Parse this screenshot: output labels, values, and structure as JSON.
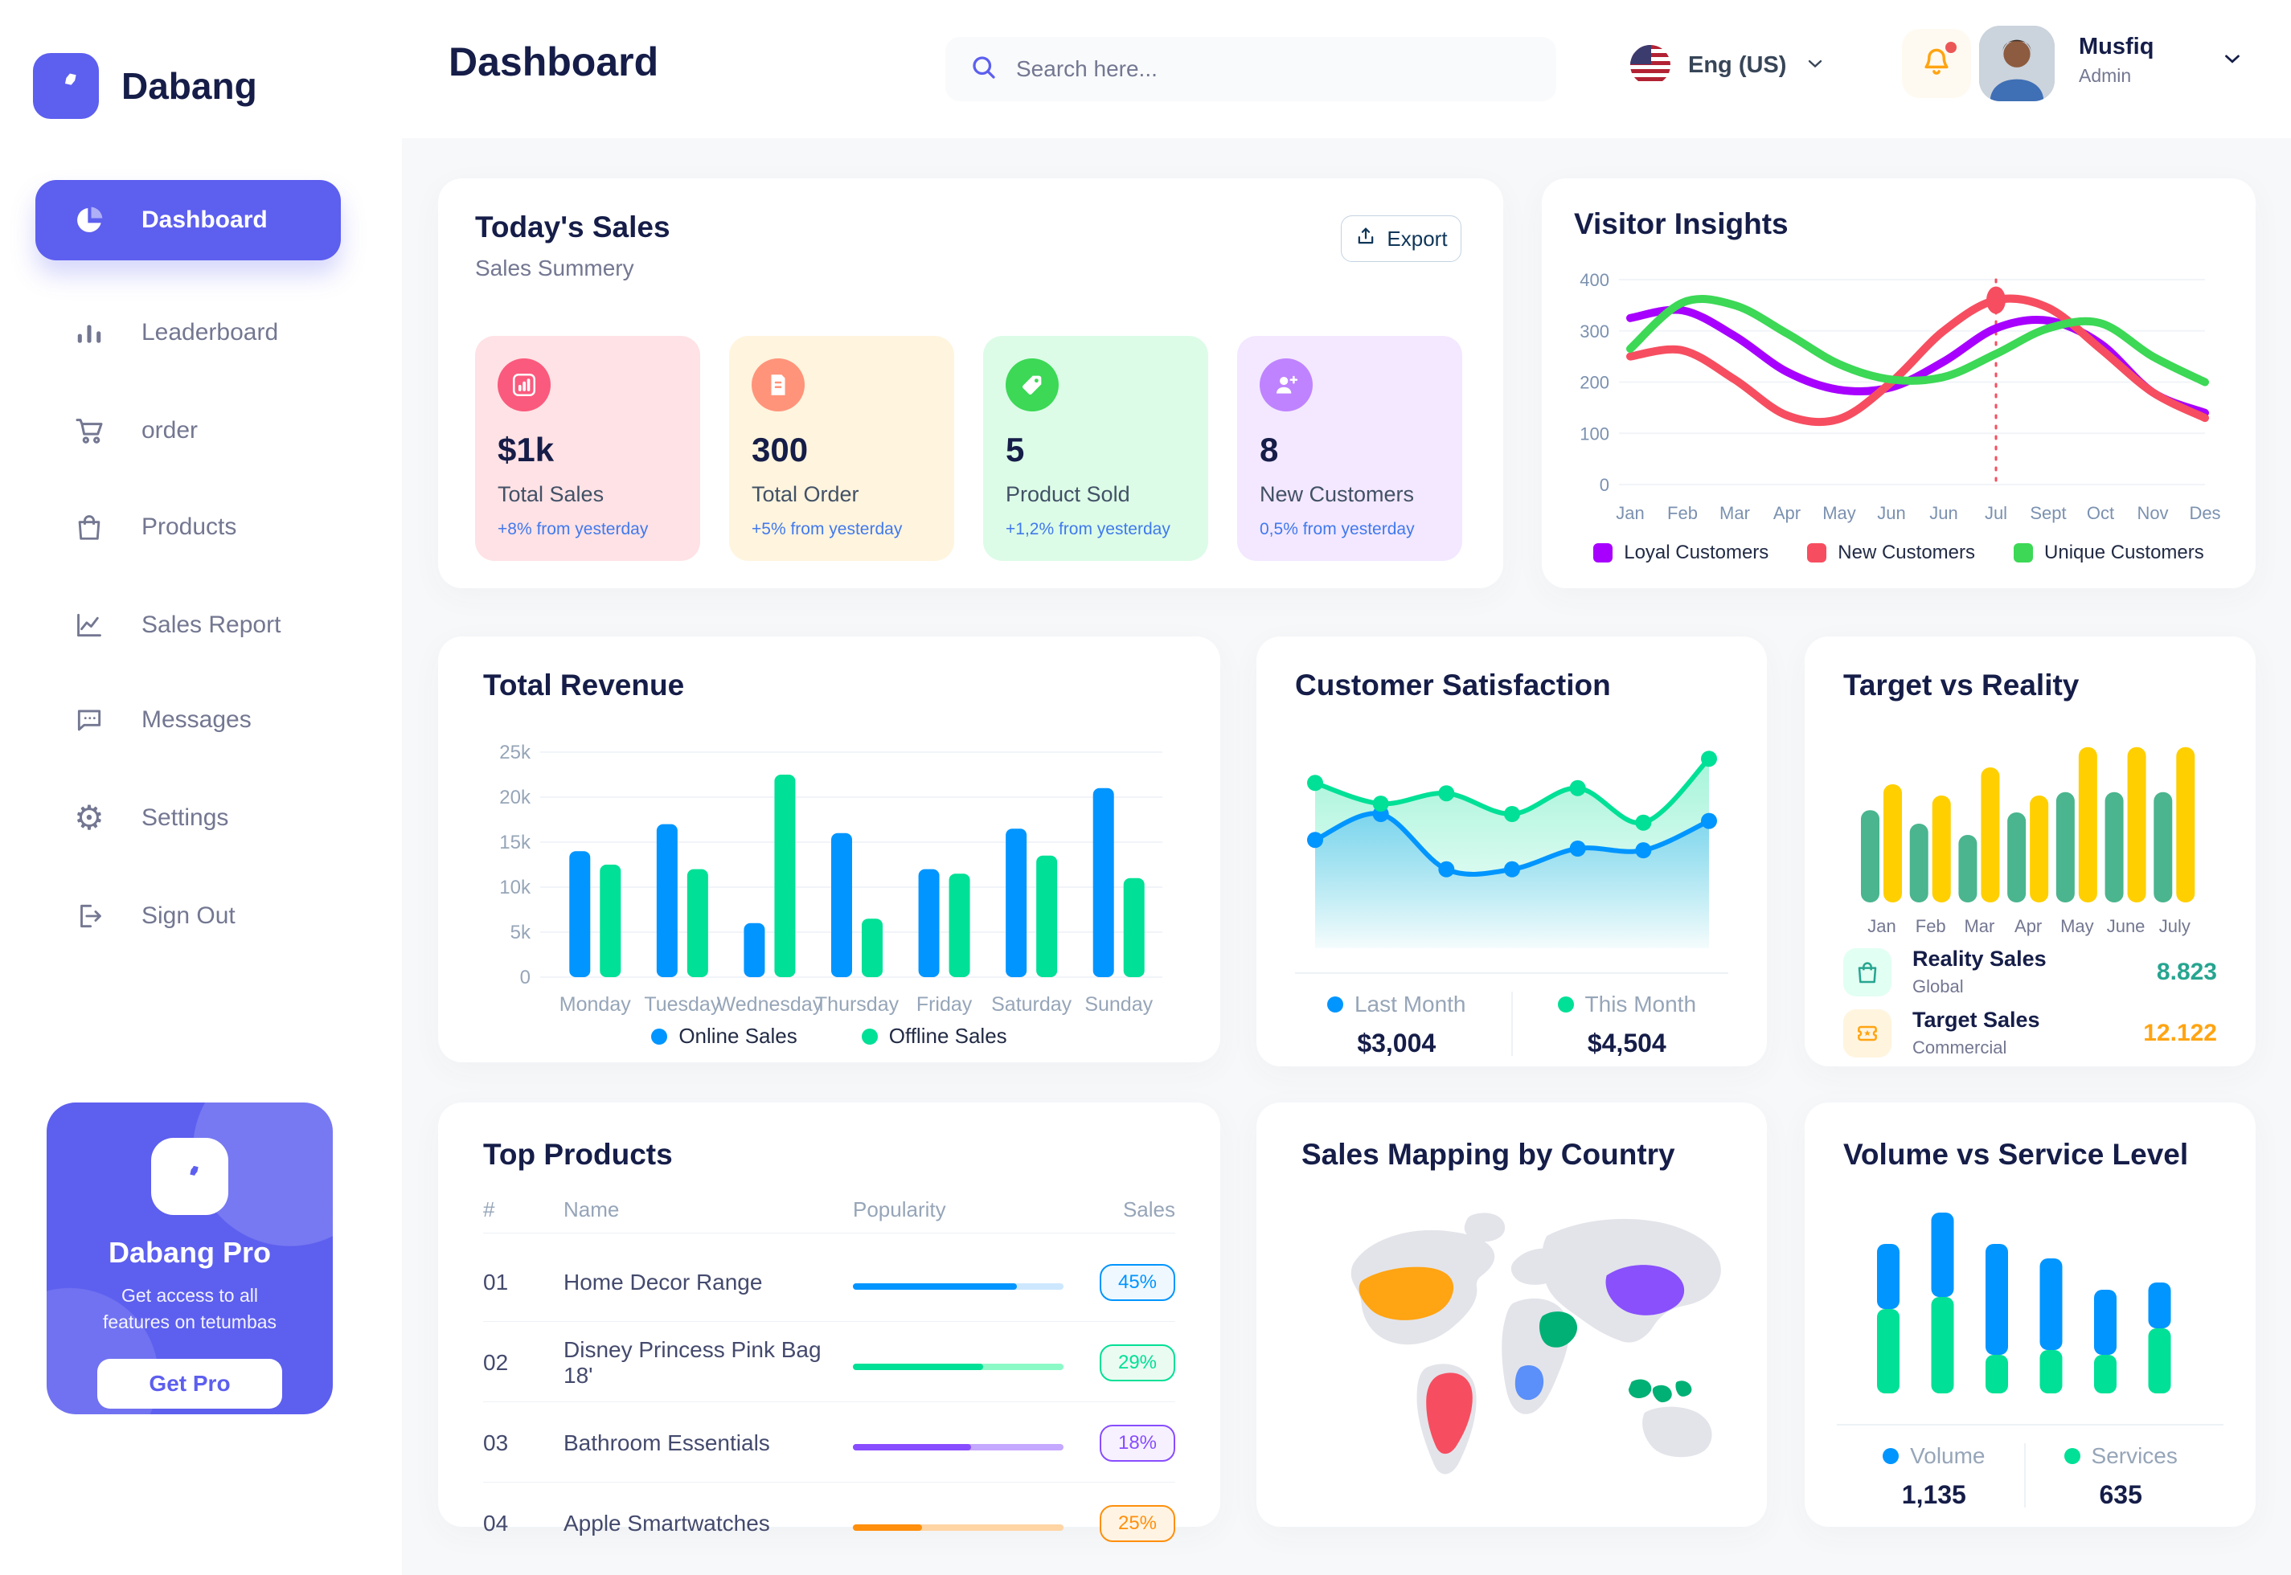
{
  "app": {
    "name": "Dabang"
  },
  "sidebar": {
    "items": [
      {
        "label": "Dashboard"
      },
      {
        "label": "Leaderboard"
      },
      {
        "label": "order"
      },
      {
        "label": "Products"
      },
      {
        "label": "Sales Report"
      },
      {
        "label": "Messages"
      },
      {
        "label": "Settings"
      },
      {
        "label": "Sign Out"
      }
    ],
    "pro": {
      "title": "Dabang Pro",
      "description": "Get access to all features on tetumbas",
      "button": "Get Pro"
    }
  },
  "header": {
    "title": "Dashboard",
    "search_placeholder": "Search here...",
    "language": "Eng (US)",
    "user": {
      "name": "Musfiq",
      "role": "Admin"
    }
  },
  "today_sales": {
    "title": "Today's Sales",
    "subtitle": "Sales Summery",
    "export_label": "Export",
    "cards": [
      {
        "value": "$1k",
        "label": "Total Sales",
        "delta": "+8% from yesterday",
        "bg": "#FFE2E5",
        "icon_bg": "#FA5A7D"
      },
      {
        "value": "300",
        "label": "Total Order",
        "delta": "+5% from yesterday",
        "bg": "#FFF4DE",
        "icon_bg": "#FF947A"
      },
      {
        "value": "5",
        "label": "Product Sold",
        "delta": "+1,2% from yesterday",
        "bg": "#DCFCE7",
        "icon_bg": "#3CD856"
      },
      {
        "value": "8",
        "label": "New Customers",
        "delta": "0,5% from yesterday",
        "bg": "#F3E8FF",
        "icon_bg": "#BF83FF"
      }
    ]
  },
  "visitor_insights": {
    "title": "Visitor Insights",
    "chart_data": {
      "type": "line",
      "x": [
        "Jan",
        "Feb",
        "Mar",
        "Apr",
        "May",
        "Jun",
        "Jun",
        "Jul",
        "Sept",
        "Oct",
        "Nov",
        "Des"
      ],
      "ylim": [
        0,
        400
      ],
      "yticks": [
        0,
        100,
        200,
        300,
        400
      ],
      "series": [
        {
          "name": "Loyal Customers",
          "color": "#A700FF",
          "values": [
            325,
            340,
            290,
            220,
            185,
            190,
            240,
            305,
            320,
            275,
            180,
            140
          ]
        },
        {
          "name": "New Customers",
          "color": "#F64E60",
          "values": [
            250,
            262,
            205,
            135,
            128,
            200,
            300,
            360,
            345,
            265,
            180,
            130
          ]
        },
        {
          "name": "Unique Customers",
          "color": "#3CD856",
          "values": [
            265,
            355,
            350,
            295,
            235,
            205,
            210,
            255,
            305,
            315,
            250,
            200
          ]
        }
      ],
      "marker": {
        "series": 1,
        "index": 7
      }
    }
  },
  "total_revenue": {
    "title": "Total Revenue",
    "chart_data": {
      "type": "bar",
      "categories": [
        "Monday",
        "Tuesday",
        "Wednesday",
        "Thursday",
        "Friday",
        "Saturday",
        "Sunday"
      ],
      "ylim": [
        0,
        25000
      ],
      "ytick_labels": [
        "0",
        "5k",
        "10k",
        "15k",
        "20k",
        "25k"
      ],
      "series": [
        {
          "name": "Online Sales",
          "color": "#0095FF",
          "values": [
            14000,
            17000,
            6000,
            16000,
            12000,
            16500,
            21000
          ]
        },
        {
          "name": "Offline Sales",
          "color": "#00E096",
          "values": [
            12500,
            12000,
            22500,
            6500,
            11500,
            13500,
            11000
          ]
        }
      ]
    }
  },
  "customer_satisfaction": {
    "title": "Customer Satisfaction",
    "chart_data": {
      "type": "area",
      "ylim": [
        0,
        100
      ],
      "series": [
        {
          "name": "Last Month",
          "color": "#0095FF",
          "total": "$3,004",
          "values": [
            45,
            60,
            28,
            28,
            40,
            39,
            56
          ]
        },
        {
          "name": "This Month",
          "color": "#00E096",
          "total": "$4,504",
          "values": [
            78,
            66,
            72,
            60,
            75,
            55,
            92
          ]
        }
      ]
    }
  },
  "target_reality": {
    "title": "Target vs Reality",
    "chart_data": {
      "type": "bar",
      "categories": [
        "Jan",
        "Feb",
        "Mar",
        "Apr",
        "May",
        "June",
        "July"
      ],
      "ylim": [
        0,
        15
      ],
      "series": [
        {
          "name": "Reality Sales",
          "color": "#4AB58E",
          "values": [
            8.2,
            7,
            6,
            8,
            9.8,
            9.8,
            9.8
          ]
        },
        {
          "name": "Target Sales",
          "color": "#FFCF00",
          "values": [
            10.5,
            9.5,
            12,
            9.5,
            13.8,
            13.8,
            13.8
          ]
        }
      ]
    },
    "legend": [
      {
        "name": "Reality Sales",
        "scope": "Global",
        "value": "8.823",
        "value_color": "#27A590",
        "icon_bg": "#E2FFF3"
      },
      {
        "name": "Target Sales",
        "scope": "Commercial",
        "value": "12.122",
        "value_color": "#FFA412",
        "icon_bg": "#FFF4DE"
      }
    ]
  },
  "top_products": {
    "title": "Top Products",
    "columns": [
      "#",
      "Name",
      "Popularity",
      "Sales"
    ],
    "rows": [
      {
        "num": "01",
        "name": "Home Decor Range",
        "popularity": 78,
        "sales": "45%",
        "color": "#0095FF",
        "track": "#CDE7FF",
        "badge_bg": "#EFF8FF"
      },
      {
        "num": "02",
        "name": "Disney Princess Pink Bag 18'",
        "popularity": 62,
        "sales": "29%",
        "color": "#00E096",
        "track": "#8CFAC7",
        "badge_bg": "#EAFBF2"
      },
      {
        "num": "03",
        "name": "Bathroom Essentials",
        "popularity": 56,
        "sales": "18%",
        "color": "#884DFF",
        "track": "#C5A8FF",
        "badge_bg": "#F7F1FF"
      },
      {
        "num": "04",
        "name": "Apple Smartwatches",
        "popularity": 33,
        "sales": "25%",
        "color": "#FF8F0D",
        "track": "#FFD5A4",
        "badge_bg": "#FFF4E3"
      }
    ]
  },
  "sales_mapping": {
    "title": "Sales Mapping by Country",
    "colors": {
      "land": "#E3E4EA",
      "usa": "#FFA412",
      "brazil": "#F64E60",
      "saudi_arabia": "#00B074",
      "dr_congo": "#5B8FF9",
      "china": "#8950FC",
      "indonesia": "#00B074"
    }
  },
  "volume_service": {
    "title": "Volume vs Service Level",
    "chart_data": {
      "type": "stacked-bar",
      "series": [
        {
          "name": "Volume",
          "color": "#0095FF",
          "total": "1,135",
          "values": [
            270,
            350,
            460,
            380,
            270,
            190
          ]
        },
        {
          "name": "Services",
          "color": "#00E096",
          "total": "635",
          "values": [
            350,
            400,
            160,
            180,
            160,
            270
          ]
        }
      ]
    }
  }
}
